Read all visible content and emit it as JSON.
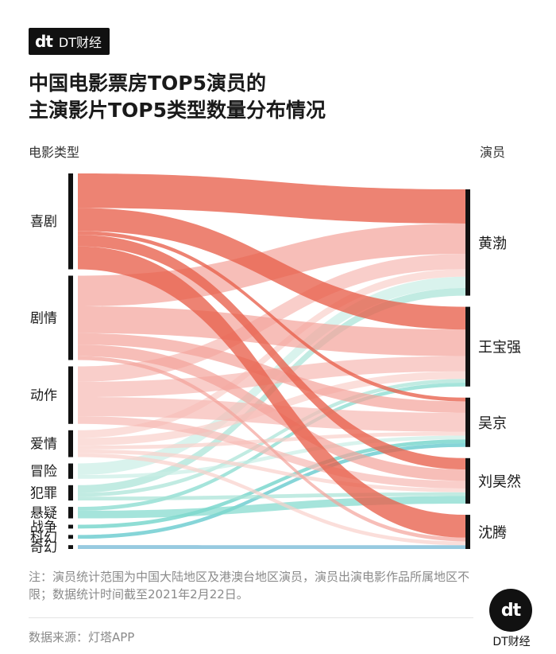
{
  "brand": {
    "mark": "dt",
    "name": "DT财经"
  },
  "title": {
    "line1": "中国电影票房TOP5演员的",
    "line2": "主演影片TOP5类型数量分布情况"
  },
  "chart_data": {
    "type": "sankey",
    "left_label": "电影类型",
    "right_label": "演员",
    "categories": [
      "喜剧",
      "剧情",
      "动作",
      "爱情",
      "冒险",
      "犯罪",
      "悬疑",
      "战争",
      "科幻",
      "奇幻"
    ],
    "actors": [
      "黄渤",
      "王宝强",
      "吴京",
      "刘昊然",
      "沈腾"
    ],
    "colors": {
      "喜剧": "#e8604c",
      "剧情": "#f4a29a",
      "动作": "#f7b9b3",
      "爱情": "#fad0cb",
      "冒险": "#c9eee5",
      "犯罪": "#a6e3d6",
      "悬疑": "#7fd8cc",
      "战争": "#5fcfc3",
      "科幻": "#52c3c8",
      "奇幻": "#6bb3d3"
    },
    "flows": [
      {
        "source": "喜剧",
        "target": "黄渤",
        "value": 9
      },
      {
        "source": "喜剧",
        "target": "王宝强",
        "value": 6
      },
      {
        "source": "喜剧",
        "target": "吴京",
        "value": 1
      },
      {
        "source": "喜剧",
        "target": "刘昊然",
        "value": 3
      },
      {
        "source": "喜剧",
        "target": "沈腾",
        "value": 6
      },
      {
        "source": "剧情",
        "target": "黄渤",
        "value": 8
      },
      {
        "source": "剧情",
        "target": "王宝强",
        "value": 7
      },
      {
        "source": "剧情",
        "target": "吴京",
        "value": 3
      },
      {
        "source": "剧情",
        "target": "刘昊然",
        "value": 3
      },
      {
        "source": "剧情",
        "target": "沈腾",
        "value": 1
      },
      {
        "source": "动作",
        "target": "黄渤",
        "value": 4
      },
      {
        "source": "动作",
        "target": "王宝强",
        "value": 4
      },
      {
        "source": "动作",
        "target": "吴京",
        "value": 5
      },
      {
        "source": "动作",
        "target": "刘昊然",
        "value": 2
      },
      {
        "source": "爱情",
        "target": "黄渤",
        "value": 2
      },
      {
        "source": "爱情",
        "target": "王宝强",
        "value": 2
      },
      {
        "source": "爱情",
        "target": "吴京",
        "value": 1
      },
      {
        "source": "爱情",
        "target": "刘昊然",
        "value": 1
      },
      {
        "source": "爱情",
        "target": "沈腾",
        "value": 1
      },
      {
        "source": "冒险",
        "target": "黄渤",
        "value": 3
      },
      {
        "source": "冒险",
        "target": "吴京",
        "value": 1
      },
      {
        "source": "犯罪",
        "target": "黄渤",
        "value": 2
      },
      {
        "source": "犯罪",
        "target": "王宝强",
        "value": 1
      },
      {
        "source": "犯罪",
        "target": "刘昊然",
        "value": 1
      },
      {
        "source": "悬疑",
        "target": "王宝强",
        "value": 1
      },
      {
        "source": "悬疑",
        "target": "刘昊然",
        "value": 2
      },
      {
        "source": "战争",
        "target": "吴京",
        "value": 1
      },
      {
        "source": "科幻",
        "target": "吴京",
        "value": 1
      },
      {
        "source": "奇幻",
        "target": "沈腾",
        "value": 1
      }
    ]
  },
  "note": "注：演员统计范围为中国大陆地区及港澳台地区演员，演员出演电影作品所属地区不限；数据统计时间截至2021年2月22日。",
  "source": "数据来源：灯塔APP",
  "logo": {
    "mark": "dt",
    "text": "DT财经"
  }
}
